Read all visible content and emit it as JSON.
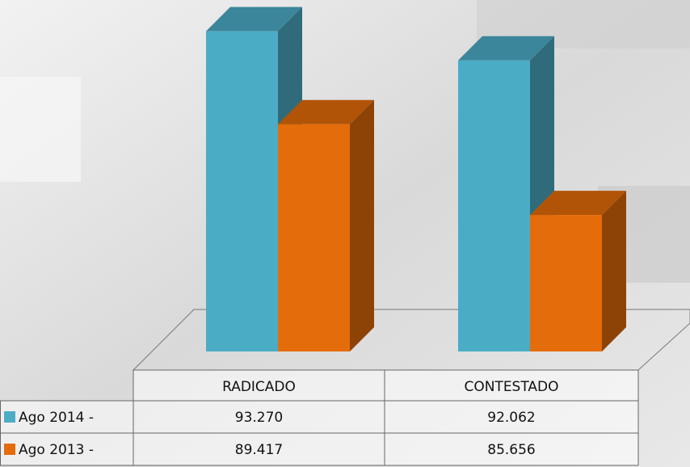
{
  "chart_data": {
    "type": "bar",
    "categories": [
      "RADICADO",
      "CONTESTADO"
    ],
    "series": [
      {
        "name": "Ago 2014 -",
        "color": "#4bacc6",
        "values": [
          93270,
          92062
        ],
        "value_labels": [
          "93.270",
          "92.062"
        ]
      },
      {
        "name": "Ago 2013 -",
        "color": "#e46c0a",
        "values": [
          89417,
          85656
        ],
        "value_labels": [
          "89.417",
          "85.656"
        ]
      }
    ],
    "ylim": [
      80000,
      95000
    ]
  }
}
